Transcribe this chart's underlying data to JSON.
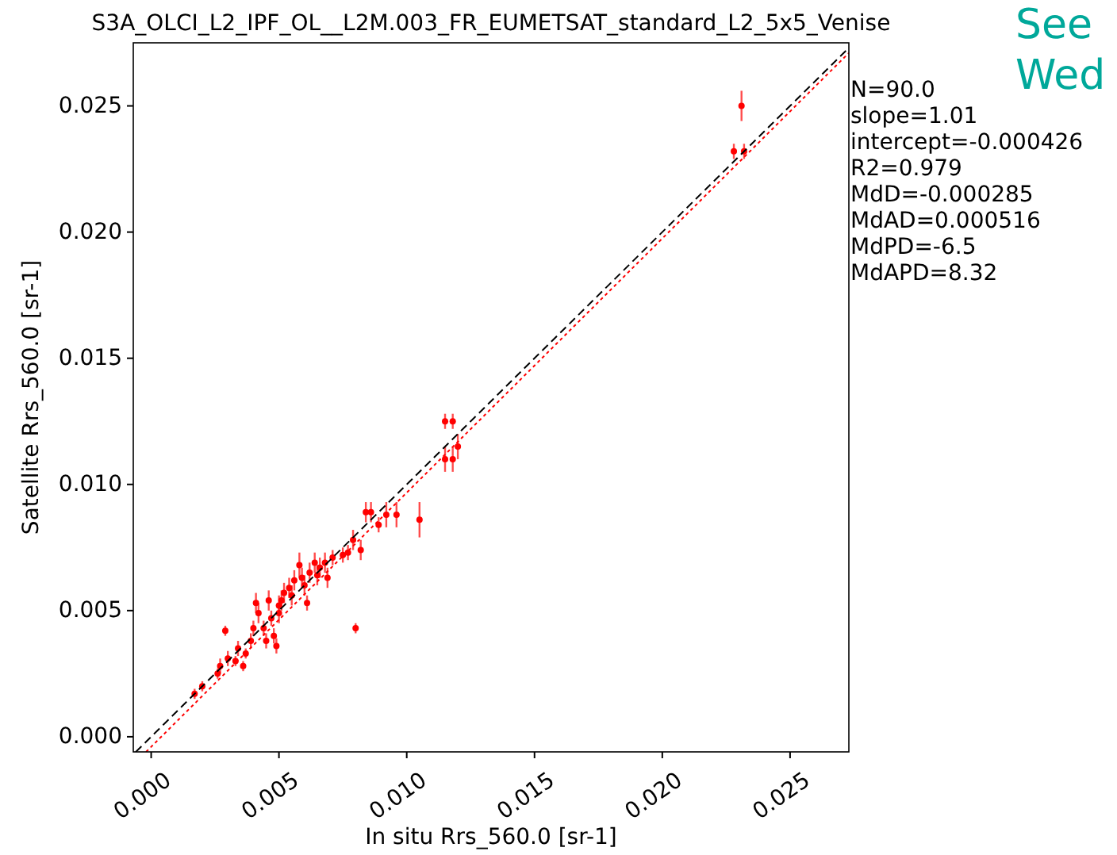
{
  "chart_data": {
    "type": "scatter",
    "title": "S3A_OLCI_L2_IPF_OL__L2M.003_FR_EUMETSAT_standard_L2_5x5_Venise",
    "xlabel": "In situ Rrs_560.0 [sr-1]",
    "ylabel": "Satellite Rrs_560.0 [sr-1]",
    "xlim": [
      -0.0007,
      0.0273
    ],
    "ylim": [
      -0.0006,
      0.0275
    ],
    "xticks": [
      {
        "value": 0,
        "label": "0.000"
      },
      {
        "value": 0.005,
        "label": "0.005"
      },
      {
        "value": 0.01,
        "label": "0.010"
      },
      {
        "value": 0.015,
        "label": "0.015"
      },
      {
        "value": 0.02,
        "label": "0.020"
      },
      {
        "value": 0.025,
        "label": "0.025"
      }
    ],
    "yticks": [
      {
        "value": 0,
        "label": "0.000"
      },
      {
        "value": 0.005,
        "label": "0.005"
      },
      {
        "value": 0.01,
        "label": "0.010"
      },
      {
        "value": 0.015,
        "label": "0.015"
      },
      {
        "value": 0.02,
        "label": "0.020"
      },
      {
        "value": 0.025,
        "label": "0.025"
      }
    ],
    "grid": false,
    "series": [
      {
        "marker": "circle",
        "color": "#ff0000",
        "x": [
          0.0017,
          0.002,
          0.0026,
          0.0027,
          0.003,
          0.0033,
          0.0034,
          0.0036,
          0.0037,
          0.0039,
          0.0029,
          0.004,
          0.0041,
          0.0042,
          0.0044,
          0.0045,
          0.0046,
          0.0047,
          0.0048,
          0.0049,
          0.005,
          0.005,
          0.0051,
          0.0052,
          0.0054,
          0.0055,
          0.0056,
          0.0058,
          0.0059,
          0.006,
          0.0061,
          0.0062,
          0.0064,
          0.0065,
          0.0066,
          0.0068,
          0.0069,
          0.0071,
          0.0075,
          0.0077,
          0.0079,
          0.0082,
          0.008,
          0.0084,
          0.0086,
          0.0089,
          0.0092,
          0.0096,
          0.0105,
          0.0115,
          0.0118,
          0.0115,
          0.0118,
          0.012,
          0.0231,
          0.0228,
          0.0232
        ],
        "values": [
          0.0017,
          0.002,
          0.0025,
          0.0028,
          0.0031,
          0.003,
          0.0035,
          0.0028,
          0.0033,
          0.0038,
          0.0042,
          0.0043,
          0.0053,
          0.0049,
          0.0043,
          0.0038,
          0.0054,
          0.0047,
          0.004,
          0.0036,
          0.0052,
          0.0049,
          0.0054,
          0.0057,
          0.0059,
          0.0056,
          0.0062,
          0.0068,
          0.0063,
          0.006,
          0.0053,
          0.0065,
          0.0069,
          0.0064,
          0.0067,
          0.0069,
          0.0063,
          0.0071,
          0.0072,
          0.0073,
          0.0078,
          0.0074,
          0.0043,
          0.0089,
          0.0089,
          0.0084,
          0.0088,
          0.0088,
          0.0086,
          0.0125,
          0.0125,
          0.011,
          0.011,
          0.0115,
          0.025,
          0.0232,
          0.0232
        ],
        "errors": [
          0.0002,
          0.0002,
          0.0002,
          0.0003,
          0.0003,
          0.0002,
          0.0003,
          0.0002,
          0.0002,
          0.0003,
          0.0002,
          0.0003,
          0.0004,
          0.0004,
          0.0003,
          0.0003,
          0.0004,
          0.0003,
          0.0003,
          0.0003,
          0.0004,
          0.0004,
          0.0004,
          0.0004,
          0.0004,
          0.0004,
          0.0004,
          0.0005,
          0.0004,
          0.0004,
          0.0003,
          0.0004,
          0.0004,
          0.0004,
          0.0004,
          0.0004,
          0.0004,
          0.0003,
          0.0003,
          0.0003,
          0.0004,
          0.0004,
          0.0002,
          0.0004,
          0.0004,
          0.0003,
          0.0005,
          0.0005,
          0.0007,
          0.0003,
          0.0003,
          0.0005,
          0.0005,
          0.0005,
          0.0006,
          0.0003,
          0.0003
        ]
      },
      {
        "type": "line",
        "marker": "none",
        "color": "#000000",
        "line_style": "dashed",
        "x": [
          -0.0006,
          0.0273
        ],
        "values": [
          -0.0006,
          0.0273
        ]
      },
      {
        "type": "line",
        "marker": "none",
        "color": "#ff0000",
        "line_style": "dotted",
        "x": [
          -0.0002,
          0.0273
        ],
        "values": [
          -0.0006,
          0.0271
        ]
      }
    ],
    "annotations": [
      "N=90.0",
      "slope=1.01",
      "intercept=-0.000426",
      "R2=0.979",
      "MdD=-0.000285",
      "MdAD=0.000516",
      "MdPD=-6.5",
      "MdAPD=8.32",
      "See",
      "Wed"
    ]
  }
}
